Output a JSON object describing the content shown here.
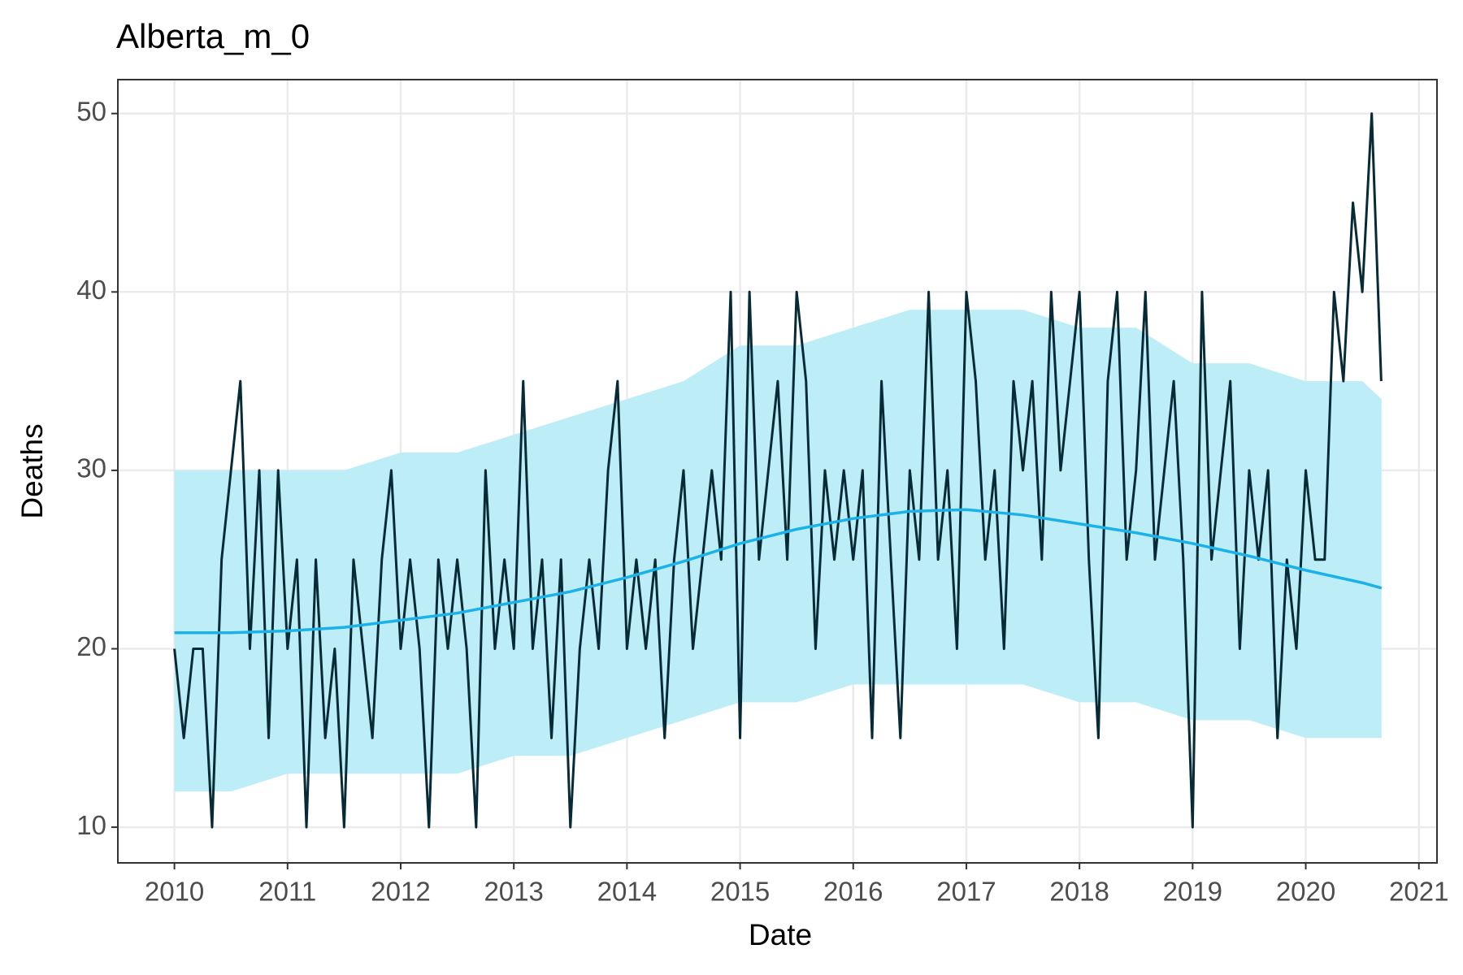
{
  "chart_data": {
    "type": "line",
    "title": "Alberta_m_0",
    "x_label": "Date",
    "y_label": "Deaths",
    "xlim": [
      2009.5,
      2021.16
    ],
    "xticks": [
      2010,
      2011,
      2012,
      2013,
      2014,
      2015,
      2016,
      2017,
      2018,
      2019,
      2020,
      2021
    ],
    "ylim": [
      8.0,
      51.9
    ],
    "yticks": [
      10,
      20,
      30,
      40,
      50
    ],
    "grid": true,
    "x": [
      2010,
      2010.083,
      2010.167,
      2010.25,
      2010.333,
      2010.417,
      2010.5,
      2010.583,
      2010.667,
      2010.75,
      2010.833,
      2010.917,
      2011,
      2011.083,
      2011.167,
      2011.25,
      2011.333,
      2011.417,
      2011.5,
      2011.583,
      2011.667,
      2011.75,
      2011.833,
      2011.917,
      2012,
      2012.083,
      2012.167,
      2012.25,
      2012.333,
      2012.417,
      2012.5,
      2012.583,
      2012.667,
      2012.75,
      2012.833,
      2012.917,
      2013,
      2013.083,
      2013.167,
      2013.25,
      2013.333,
      2013.417,
      2013.5,
      2013.583,
      2013.667,
      2013.75,
      2013.833,
      2013.917,
      2014,
      2014.083,
      2014.167,
      2014.25,
      2014.333,
      2014.417,
      2014.5,
      2014.583,
      2014.667,
      2014.75,
      2014.833,
      2014.917,
      2015,
      2015.083,
      2015.167,
      2015.25,
      2015.333,
      2015.417,
      2015.5,
      2015.583,
      2015.667,
      2015.75,
      2015.833,
      2015.917,
      2016,
      2016.083,
      2016.167,
      2016.25,
      2016.333,
      2016.417,
      2016.5,
      2016.583,
      2016.667,
      2016.75,
      2016.833,
      2016.917,
      2017,
      2017.083,
      2017.167,
      2017.25,
      2017.333,
      2017.417,
      2017.5,
      2017.583,
      2017.667,
      2017.75,
      2017.833,
      2017.917,
      2018,
      2018.083,
      2018.167,
      2018.25,
      2018.333,
      2018.417,
      2018.5,
      2018.583,
      2018.667,
      2018.75,
      2018.833,
      2018.917,
      2019,
      2019.083,
      2019.167,
      2019.25,
      2019.333,
      2019.417,
      2019.5,
      2019.583,
      2019.667,
      2019.75,
      2019.833,
      2019.917,
      2020,
      2020.083,
      2020.167,
      2020.25,
      2020.333,
      2020.417,
      2020.5,
      2020.583,
      2020.667
    ],
    "series": [
      {
        "color": "#072b36",
        "values": [
          20,
          15,
          20,
          20,
          10,
          25,
          30,
          35,
          20,
          30,
          15,
          30,
          20,
          25,
          10,
          25,
          15,
          20,
          10,
          25,
          20,
          15,
          25,
          30,
          20,
          25,
          20,
          10,
          25,
          20,
          25,
          20,
          10,
          30,
          20,
          25,
          20,
          35,
          20,
          25,
          15,
          25,
          10,
          20,
          25,
          20,
          30,
          35,
          20,
          25,
          20,
          25,
          15,
          25,
          30,
          20,
          25,
          30,
          25,
          40,
          15,
          40,
          25,
          30,
          35,
          25,
          40,
          35,
          20,
          30,
          25,
          30,
          25,
          30,
          15,
          35,
          25,
          15,
          30,
          25,
          40,
          25,
          30,
          20,
          40,
          35,
          25,
          30,
          20,
          35,
          30,
          35,
          25,
          40,
          30,
          35,
          40,
          25,
          15,
          35,
          40,
          25,
          30,
          40,
          25,
          30,
          35,
          25,
          10,
          40,
          25,
          30,
          35,
          20,
          30,
          25,
          30,
          15,
          25,
          20,
          30,
          25,
          25,
          40,
          35,
          45,
          40,
          50,
          35
        ]
      }
    ],
    "band": {
      "color": "#bdeef8",
      "x": [
        2010,
        2010.5,
        2011,
        2011.5,
        2012,
        2012.5,
        2013,
        2013.5,
        2014,
        2014.5,
        2015,
        2015.5,
        2016,
        2016.5,
        2017,
        2017.5,
        2018,
        2018.5,
        2019,
        2019.5,
        2020,
        2020.5,
        2020.67
      ],
      "upper": [
        30,
        30,
        30,
        30,
        31,
        31,
        32,
        33,
        34,
        35,
        37,
        37,
        38,
        39,
        39,
        39,
        38,
        38,
        36,
        36,
        35,
        35,
        34
      ],
      "lower": [
        12,
        12,
        13,
        13,
        13,
        13,
        14,
        14,
        15,
        16,
        17,
        17,
        18,
        18,
        18,
        18,
        17,
        17,
        16,
        16,
        15,
        15,
        15
      ]
    },
    "trend": {
      "color": "#1ab2e8",
      "x": [
        2010,
        2010.5,
        2011,
        2011.5,
        2012,
        2012.5,
        2013,
        2013.5,
        2014,
        2014.5,
        2015,
        2015.5,
        2016,
        2016.5,
        2017,
        2017.5,
        2018,
        2018.5,
        2019,
        2019.5,
        2020,
        2020.5,
        2020.67
      ],
      "values": [
        20.9,
        20.9,
        21.0,
        21.2,
        21.6,
        22.0,
        22.6,
        23.2,
        24.0,
        24.9,
        25.9,
        26.7,
        27.3,
        27.7,
        27.8,
        27.5,
        27.0,
        26.5,
        25.9,
        25.2,
        24.4,
        23.7,
        23.4
      ]
    }
  }
}
